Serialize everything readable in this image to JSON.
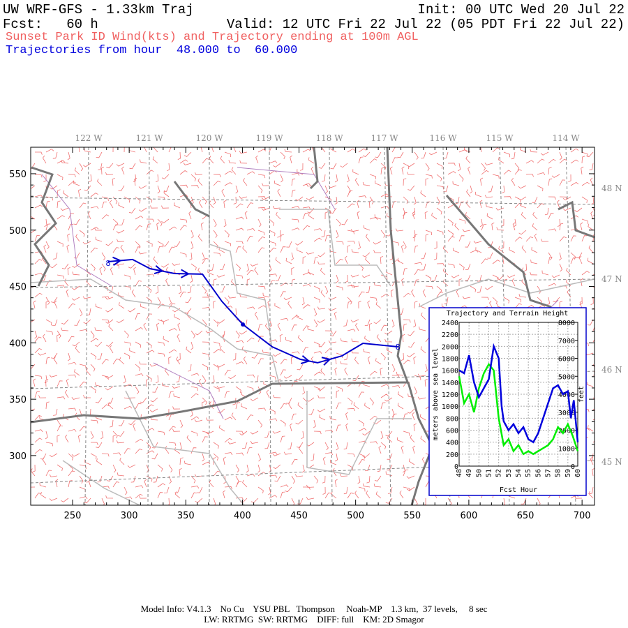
{
  "header": {
    "title": "UW WRF-GFS - 1.33km Traj",
    "init": "Init: 00 UTC Wed 20 Jul 22",
    "forecast": "Fcst:   60 h",
    "valid": "Valid: 12 UTC Fri 22 Jul 22 (05 PDT Fri 22 Jul 22)",
    "subtitle": "Sunset Park ID Wind(kts) and Trajectory ending at 100m AGL",
    "trajectory_hours": "Trajectories from hour  48.000 to  60.000"
  },
  "map": {
    "xlim": [
      213,
      711
    ],
    "ylim": [
      256,
      573.5
    ],
    "xticks": [
      250,
      300,
      350,
      400,
      450,
      500,
      550,
      600,
      650,
      700
    ],
    "yticks": [
      300,
      350,
      400,
      450,
      500,
      550
    ],
    "longitude_labels": [
      "122 W",
      "121 W",
      "120 W",
      "119 W",
      "118 W",
      "117 W",
      "116 W",
      "115 W",
      "114 W"
    ],
    "latitude_labels": [
      "48 N",
      "47 N",
      "46 N",
      "45 N"
    ],
    "trajectory": {
      "color": "#0000cc",
      "marker_label": "8",
      "x": [
        281.4,
        303.0,
        318.4,
        340.0,
        364.7,
        381.9,
        400.4,
        426.3,
        451.0,
        466.4,
        488.0,
        506.5,
        537.3
      ],
      "y": [
        472.0,
        473.9,
        465.8,
        461.5,
        460.9,
        436.8,
        416.3,
        396.5,
        385.4,
        382.3,
        388.5,
        399.6,
        396.5
      ]
    }
  },
  "chart_data": {
    "type": "line",
    "title": "Trajectory and Terrain Height",
    "ylabel": "meters above sea level",
    "y2label": "feet",
    "xlabel": "Fcst Hour",
    "xlim": [
      48,
      60
    ],
    "xticks": [
      48,
      49,
      50,
      51,
      52,
      53,
      54,
      55,
      56,
      57,
      58,
      59,
      60
    ],
    "ylim": [
      0,
      2400
    ],
    "yticks": [
      0,
      200,
      400,
      600,
      800,
      1000,
      1200,
      1400,
      1600,
      1800,
      2000,
      2200,
      2400
    ],
    "y2lim": [
      0,
      8000
    ],
    "y2ticks": [
      0,
      1000,
      2000,
      3000,
      4000,
      5000,
      6000,
      7000,
      8000
    ],
    "grid": true,
    "series": [
      {
        "color": "#0000dd",
        "x": [
          48,
          48.5,
          49,
          49.5,
          50,
          50.5,
          51,
          51.5,
          52,
          52.3,
          52.5,
          53,
          53.5,
          54,
          54.5,
          55,
          55.5,
          56,
          56.5,
          57,
          57.5,
          58,
          58.5,
          59,
          59.3,
          59.6,
          60
        ],
        "values": [
          1600,
          1550,
          1850,
          1400,
          1150,
          1300,
          1450,
          2000,
          1800,
          1000,
          750,
          600,
          700,
          550,
          650,
          450,
          400,
          550,
          800,
          1050,
          1300,
          1350,
          1200,
          1250,
          800,
          1100,
          400
        ]
      },
      {
        "color": "#00ee00",
        "x": [
          48,
          48.5,
          49,
          49.5,
          50,
          50.5,
          51,
          51.5,
          52,
          52.5,
          53,
          53.5,
          54,
          54.5,
          55,
          55.5,
          56,
          56.5,
          57,
          57.5,
          58,
          58.5,
          59,
          59.5,
          60
        ],
        "values": [
          1500,
          1050,
          1200,
          900,
          1300,
          1550,
          1700,
          1600,
          800,
          350,
          450,
          250,
          350,
          200,
          250,
          200,
          250,
          300,
          350,
          450,
          650,
          550,
          700,
          500,
          250
        ]
      }
    ]
  },
  "footer": {
    "line1": "Model Info: V4.1.3    No Cu    YSU PBL   Thompson     Noah-MP    1.3 km,  37 levels,     8 sec",
    "line2": "LW: RRTMG  SW: RRTMG    DIFF: full    KM: 2D Smagor"
  }
}
